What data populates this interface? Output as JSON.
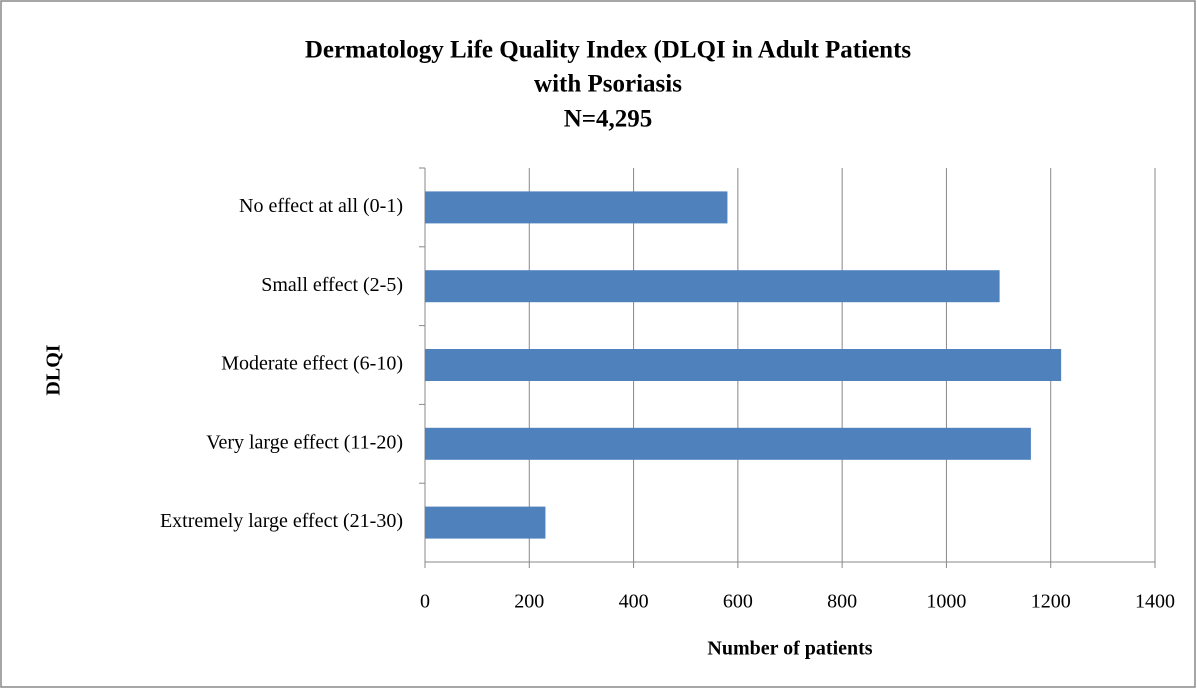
{
  "chart_data": {
    "type": "bar",
    "orientation": "horizontal",
    "title": [
      "Dermatology Life Quality Index (DLQI in Adult Patients",
      "with Psoriasis",
      "N=4,295"
    ],
    "categories": [
      "No effect at all (0-1)",
      "Small effect (2-5)",
      "Moderate effect (6-10)",
      "Very large effect (11-20)",
      "Extremely large effect (21-30)"
    ],
    "values": [
      580,
      1102,
      1220,
      1162,
      231
    ],
    "color": "#4f81bd",
    "xlim": [
      0,
      1400
    ],
    "xticks": [
      0,
      200,
      400,
      600,
      800,
      1000,
      1200,
      1400
    ],
    "xlabel": "Number of patients",
    "ylabel": "DLQI",
    "grid": true
  }
}
